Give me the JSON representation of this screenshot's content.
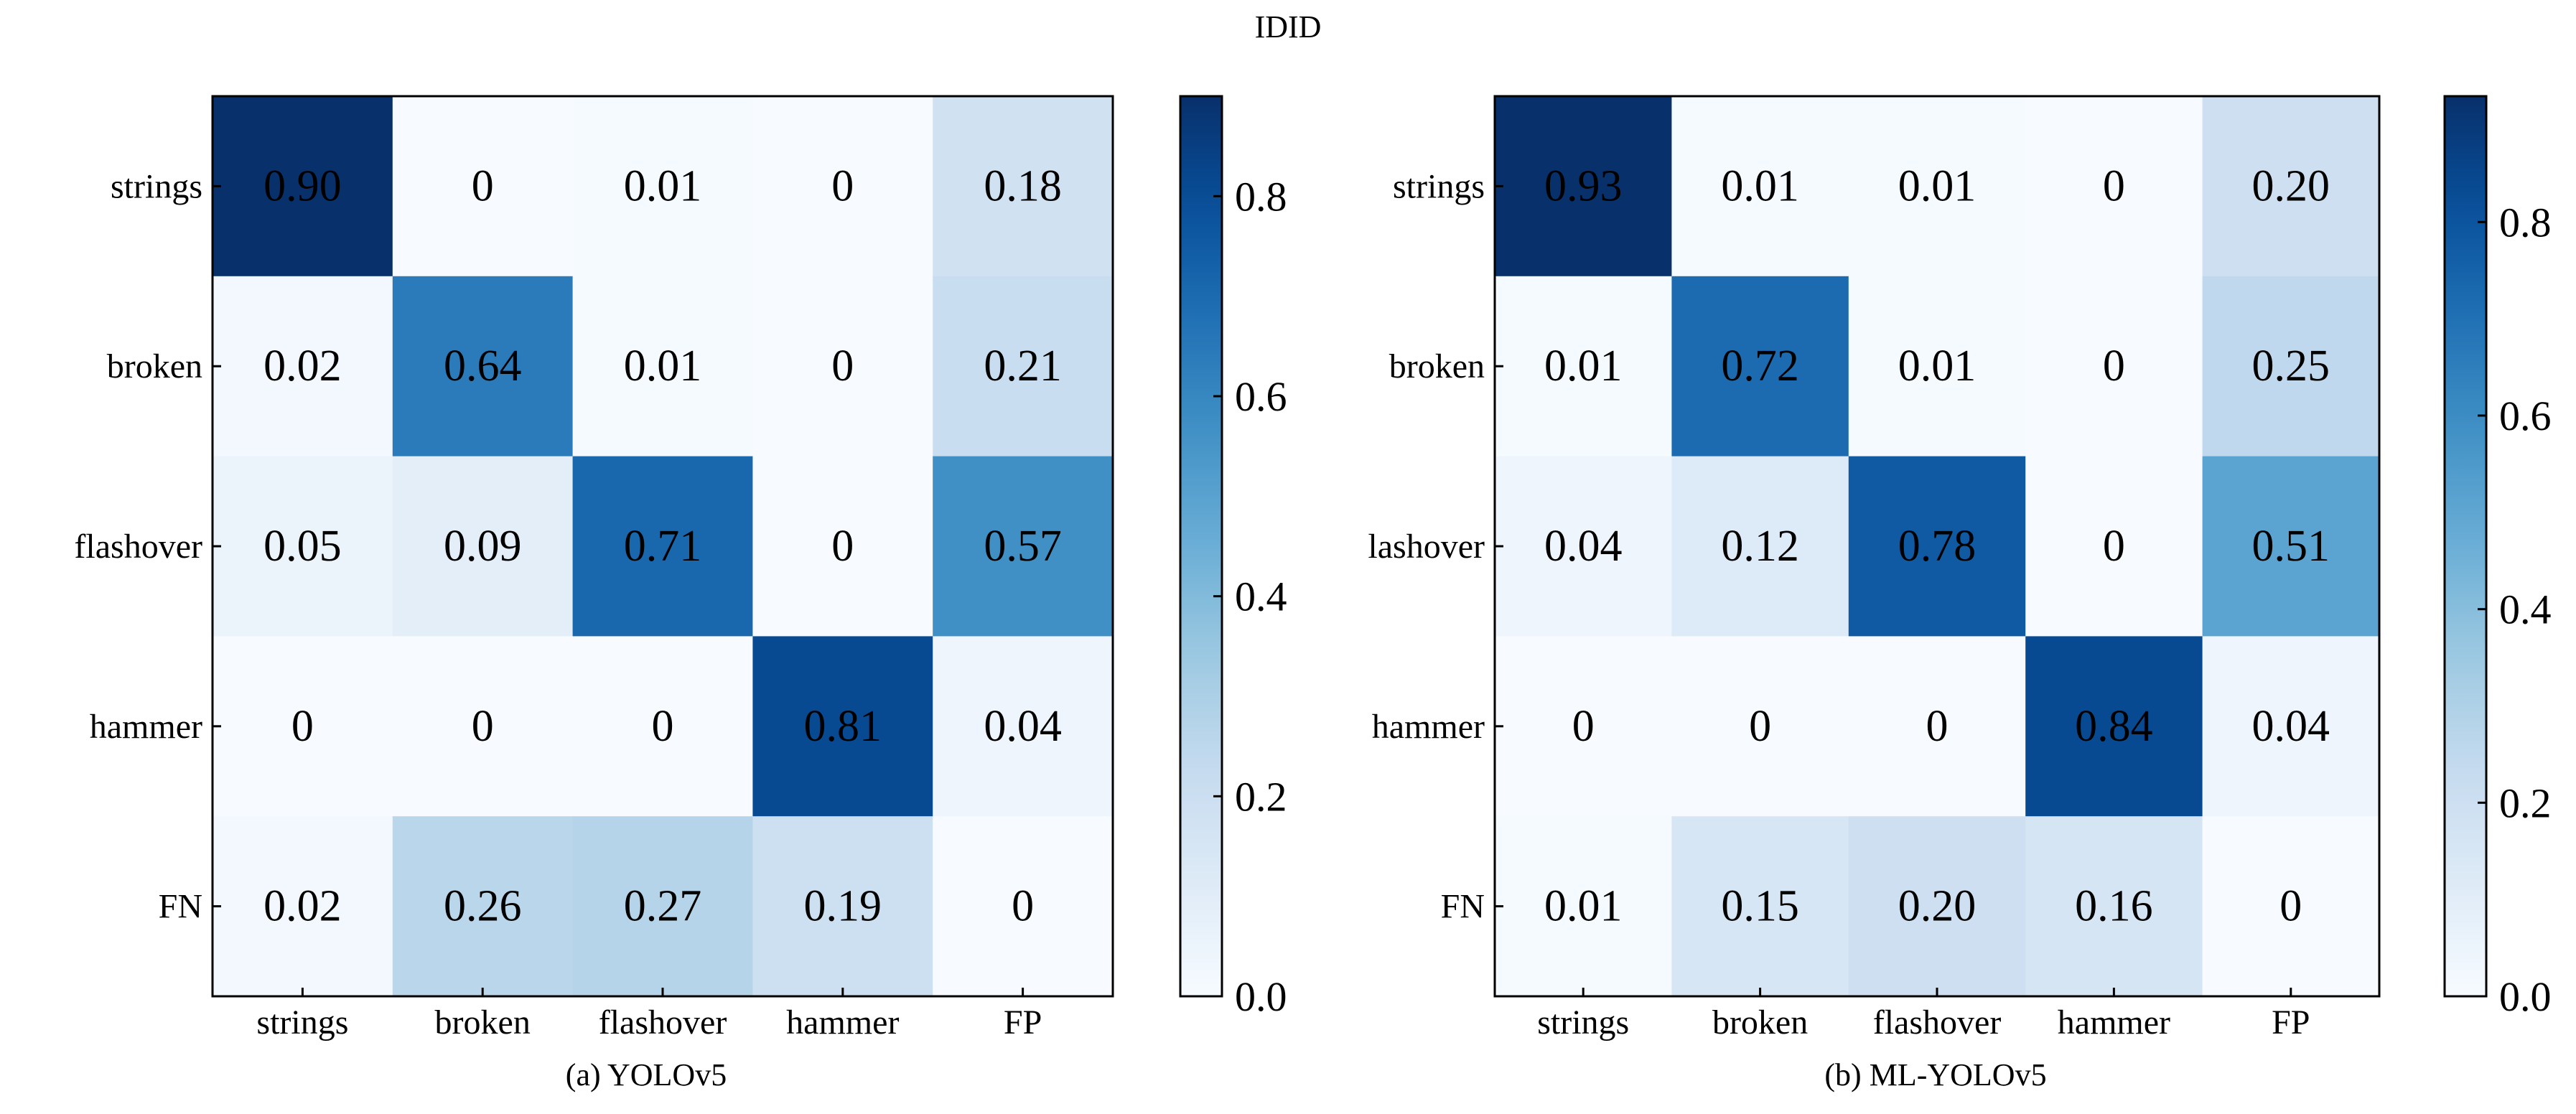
{
  "figure_title": "IDID",
  "chart_data": [
    {
      "type": "heatmap",
      "caption": "(a) YOLOv5",
      "rows": [
        "strings",
        "broken",
        "flashover",
        "hammer",
        "FN"
      ],
      "cols": [
        "strings",
        "broken",
        "flashover",
        "hammer",
        "FP"
      ],
      "values": [
        [
          0.9,
          0,
          0.01,
          0,
          0.18
        ],
        [
          0.02,
          0.64,
          0.01,
          0,
          0.21
        ],
        [
          0.05,
          0.09,
          0.71,
          0,
          0.57
        ],
        [
          0,
          0,
          0,
          0.81,
          0.04
        ],
        [
          0.02,
          0.26,
          0.27,
          0.19,
          0
        ]
      ],
      "labels": [
        [
          "0.90",
          "0",
          "0.01",
          "0",
          "0.18"
        ],
        [
          "0.02",
          "0.64",
          "0.01",
          "0",
          "0.21"
        ],
        [
          "0.05",
          "0.09",
          "0.71",
          "0",
          "0.57"
        ],
        [
          "0",
          "0",
          "0",
          "0.81",
          "0.04"
        ],
        [
          "0.02",
          "0.26",
          "0.27",
          "0.19",
          "0"
        ]
      ],
      "colorbar": {
        "colormap": "Blues",
        "range": [
          0,
          0.9
        ],
        "ticks": [
          0.0,
          0.2,
          0.4,
          0.6,
          0.8
        ],
        "tick_labels": [
          "0.0",
          "0.2",
          "0.4",
          "0.6",
          "0.8"
        ]
      }
    },
    {
      "type": "heatmap",
      "caption": "(b) ML-YOLOv5",
      "rows": [
        "strings",
        "broken",
        "lashover",
        "hammer",
        "FN"
      ],
      "cols": [
        "strings",
        "broken",
        "flashover",
        "hammer",
        "FP"
      ],
      "values": [
        [
          0.93,
          0.01,
          0.01,
          0,
          0.2
        ],
        [
          0.01,
          0.72,
          0.01,
          0,
          0.25
        ],
        [
          0.04,
          0.12,
          0.78,
          0,
          0.51
        ],
        [
          0,
          0,
          0,
          0.84,
          0.04
        ],
        [
          0.01,
          0.15,
          0.2,
          0.16,
          0
        ]
      ],
      "labels": [
        [
          "0.93",
          "0.01",
          "0.01",
          "0",
          "0.20"
        ],
        [
          "0.01",
          "0.72",
          "0.01",
          "0",
          "0.25"
        ],
        [
          "0.04",
          "0.12",
          "0.78",
          "0",
          "0.51"
        ],
        [
          "0",
          "0",
          "0",
          "0.84",
          "0.04"
        ],
        [
          "0.01",
          "0.15",
          "0.20",
          "0.16",
          "0"
        ]
      ],
      "colorbar": {
        "colormap": "Blues",
        "range": [
          0,
          0.93
        ],
        "ticks": [
          0.0,
          0.2,
          0.4,
          0.6,
          0.8
        ],
        "tick_labels": [
          "0.0",
          "0.2",
          "0.4",
          "0.6",
          "0.8"
        ]
      }
    }
  ]
}
